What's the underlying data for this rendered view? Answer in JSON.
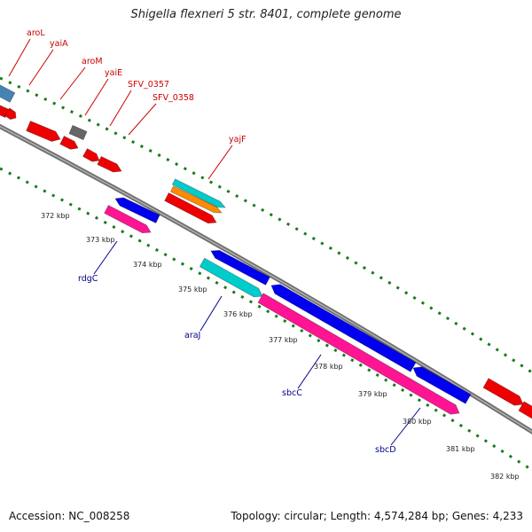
{
  "title": "Shigella flexneri 5 str. 8401, complete genome",
  "footer": {
    "accession": "Accession: NC_008258",
    "summary": "Topology: circular; Length: 4,574,284 bp; Genes: 4,233"
  },
  "colors": {
    "backbone": "#808080",
    "forward_label": "#cc0000",
    "reverse_label": "#00008b",
    "tick": "#1a7a1a"
  },
  "ticks": [
    "372 kbp",
    "373 kbp",
    "374 kbp",
    "375 kbp",
    "376 kbp",
    "377 kbp",
    "378 kbp",
    "379 kbp",
    "380 kbp",
    "381 kbp",
    "382 kbp"
  ],
  "forward_labels": [
    "aroL",
    "yaiA",
    "aroM",
    "yaiE",
    "SFV_0357",
    "SFV_0358",
    "yajF"
  ],
  "reverse_labels": [
    "rdgC",
    "araJ",
    "sbcC",
    "sbcD"
  ],
  "feature_colors": {
    "red": "#ee0000",
    "blue": "#0000ee",
    "pink": "#ff1493",
    "cyan": "#00cccc",
    "orange": "#ff8c00",
    "gray": "#666666",
    "steelblue": "#4682b4"
  }
}
